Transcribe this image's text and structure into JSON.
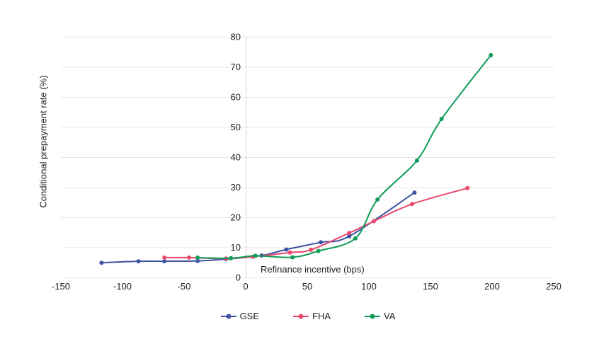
{
  "chart_data": {
    "type": "line",
    "title": "",
    "xlabel": "Refinance incentive (bps)",
    "ylabel": "Conditional prepayment rate (%)",
    "xlim": [
      -150,
      250
    ],
    "ylim": [
      0,
      80
    ],
    "xticks": [
      -150,
      -100,
      -50,
      0,
      50,
      100,
      150,
      200,
      250
    ],
    "yticks": [
      0,
      10,
      20,
      30,
      40,
      50,
      60,
      70,
      80
    ],
    "grid": "horizontal-only",
    "smooth_lines": true,
    "legend_position": "bottom",
    "series": [
      {
        "name": "GSE",
        "color": "#3e53a5",
        "points": [
          [
            -117,
            4.9
          ],
          [
            -87,
            5.4
          ],
          [
            -66,
            5.4
          ],
          [
            -39,
            5.5
          ],
          [
            -16,
            6.1
          ],
          [
            13,
            7.3
          ],
          [
            33,
            9.3
          ],
          [
            61,
            11.7
          ],
          [
            84,
            13.7
          ],
          [
            137,
            28.2
          ]
        ]
      },
      {
        "name": "FHA",
        "color": "#e8486e",
        "points": [
          [
            -66,
            6.6
          ],
          [
            -46,
            6.6
          ],
          [
            -16,
            6.3
          ],
          [
            6,
            6.9
          ],
          [
            36,
            8.3
          ],
          [
            53,
            9.2
          ],
          [
            84,
            14.8
          ],
          [
            104,
            18.7
          ],
          [
            135,
            24.4
          ],
          [
            180,
            29.7
          ]
        ]
      },
      {
        "name": "VA",
        "color": "#0f9d58",
        "points": [
          [
            -39,
            6.6
          ],
          [
            -12,
            6.4
          ],
          [
            8,
            7.2
          ],
          [
            38,
            6.7
          ],
          [
            59,
            8.8
          ],
          [
            89,
            13.0
          ],
          [
            107,
            25.9
          ],
          [
            139,
            38.9
          ],
          [
            159,
            52.7
          ],
          [
            199,
            73.9
          ]
        ]
      }
    ],
    "colors": {
      "background": "#ffffff",
      "gridline": "#e7e7e7",
      "axis_line": "#d5d5d5",
      "text": "#1f1f1f"
    }
  }
}
